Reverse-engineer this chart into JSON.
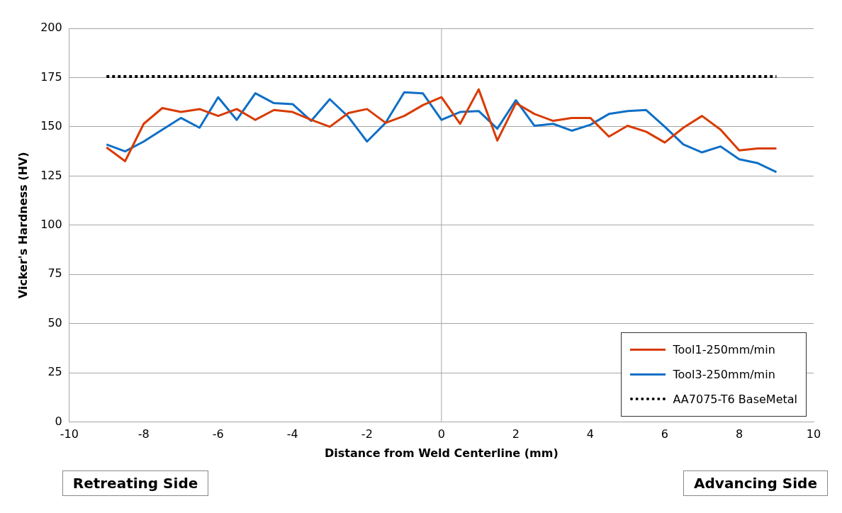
{
  "chart_data": {
    "type": "line",
    "xlabel": "Distance from Weld Centerline (mm)",
    "ylabel": "Vicker's Hardness (HV)",
    "xlim": [
      -10,
      10
    ],
    "xticks": [
      -10,
      -8,
      -6,
      -4,
      -2,
      0,
      2,
      4,
      6,
      8,
      10
    ],
    "ylim": [
      0,
      200
    ],
    "yticks": [
      0,
      25,
      50,
      75,
      100,
      125,
      150,
      175,
      200
    ],
    "grid": "y",
    "legend": "bottom right",
    "marker": "none",
    "x": [
      -9,
      -8.5,
      -8,
      -7.5,
      -7,
      -6.5,
      -6,
      -5.5,
      -5,
      -4.5,
      -4,
      -3.5,
      -3,
      -2.5,
      -2,
      -1.5,
      -1,
      -0.5,
      0,
      0.5,
      1,
      1.5,
      2,
      2.5,
      3,
      3.5,
      4,
      4.5,
      5,
      5.5,
      6,
      6.5,
      7,
      7.5,
      8,
      8.5,
      9
    ],
    "series": [
      {
        "name": "Tool1-250mm/min",
        "color": "#d83b01",
        "line_style": "solid",
        "values": [
          139.5,
          132.5,
          151.5,
          159.5,
          157.5,
          159,
          155.5,
          159,
          153.5,
          158.5,
          157.5,
          153.5,
          150,
          157,
          159,
          152,
          155.5,
          161,
          165,
          151.5,
          169,
          143,
          162,
          156.5,
          153,
          154.5,
          154.5,
          145,
          150.5,
          147.5,
          142,
          149.5,
          155.5,
          148.5,
          138,
          139,
          139
        ]
      },
      {
        "name": "Tool3-250mm/min",
        "color": "#0f6fc6",
        "line_style": "solid",
        "values": [
          141,
          137.5,
          142.5,
          148.5,
          154.5,
          149.5,
          165,
          153.5,
          167,
          162,
          161.5,
          153,
          164,
          155,
          142.5,
          152,
          167.5,
          167,
          153.5,
          157.5,
          158,
          149,
          163.5,
          150.5,
          151.5,
          148,
          151,
          156.5,
          158,
          158.5,
          150,
          141,
          137,
          140,
          133.5,
          131.5,
          127
        ]
      },
      {
        "name": "AA7075-T6 BaseMetal",
        "color": "#000000",
        "line_style": "dotted",
        "x": [
          -9,
          9
        ],
        "values": [
          175.5,
          175.5
        ]
      }
    ],
    "ref_lines": [
      {
        "axis": "x",
        "value": 0,
        "color": "#a6a6a6"
      }
    ],
    "annotations": [
      "Retreating Side",
      "Advancing Side"
    ]
  }
}
